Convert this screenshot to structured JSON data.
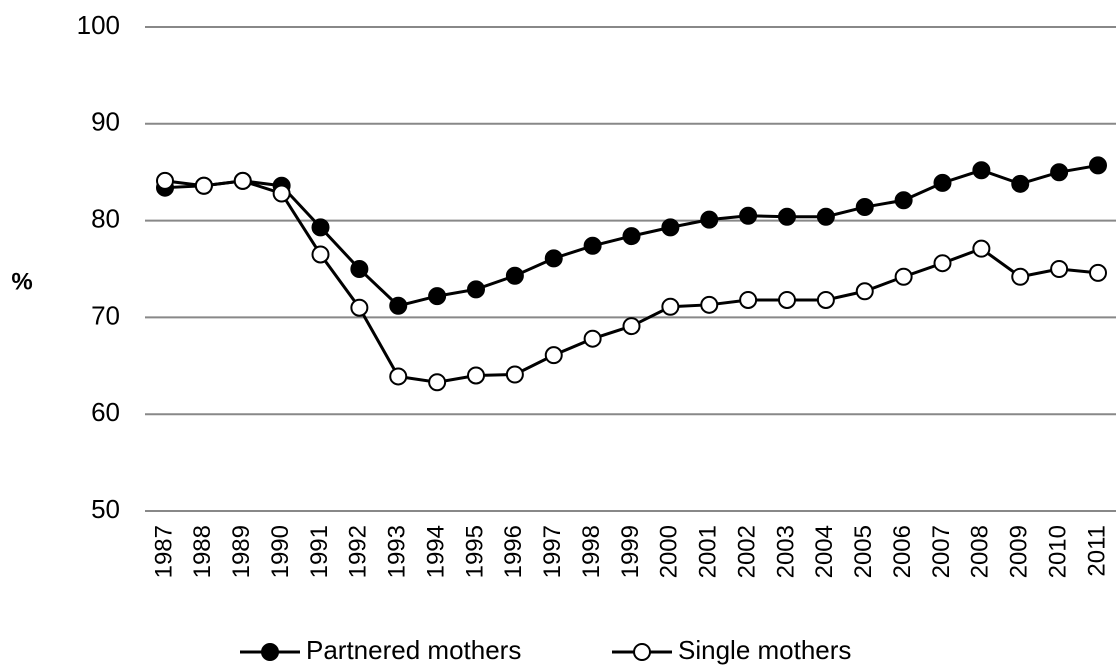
{
  "chart_data": {
    "type": "line",
    "y_label": "%",
    "categories": [
      "1987",
      "1988",
      "1989",
      "1990",
      "1991",
      "1992",
      "1993",
      "1994",
      "1995",
      "1996",
      "1997",
      "1998",
      "1999",
      "2000",
      "2001",
      "2002",
      "2003",
      "2004",
      "2005",
      "2006",
      "2007",
      "2008",
      "2009",
      "2010",
      "2011"
    ],
    "series": [
      {
        "name": "Partnered mothers",
        "color": "#000000",
        "marker_fill": "#000000",
        "values": [
          83.4,
          83.6,
          84.1,
          83.6,
          79.3,
          75.0,
          71.2,
          72.2,
          72.9,
          74.3,
          76.1,
          77.4,
          78.4,
          79.3,
          80.1,
          80.5,
          80.4,
          80.4,
          81.4,
          82.1,
          83.9,
          85.2,
          83.8,
          85.0,
          85.7
        ]
      },
      {
        "name": "Single mothers",
        "color": "#000000",
        "marker_fill": "#ffffff",
        "values": [
          84.1,
          83.6,
          84.1,
          82.8,
          76.5,
          71.0,
          63.9,
          63.3,
          64.0,
          64.1,
          66.1,
          67.8,
          69.1,
          71.1,
          71.3,
          71.8,
          71.8,
          71.8,
          72.7,
          74.2,
          75.6,
          77.1,
          74.2,
          75.0,
          74.6
        ]
      }
    ],
    "ylim": [
      50,
      100
    ],
    "yticks": [
      50,
      60,
      70,
      80,
      90,
      100
    ],
    "grid": true,
    "legend": "bottom"
  }
}
